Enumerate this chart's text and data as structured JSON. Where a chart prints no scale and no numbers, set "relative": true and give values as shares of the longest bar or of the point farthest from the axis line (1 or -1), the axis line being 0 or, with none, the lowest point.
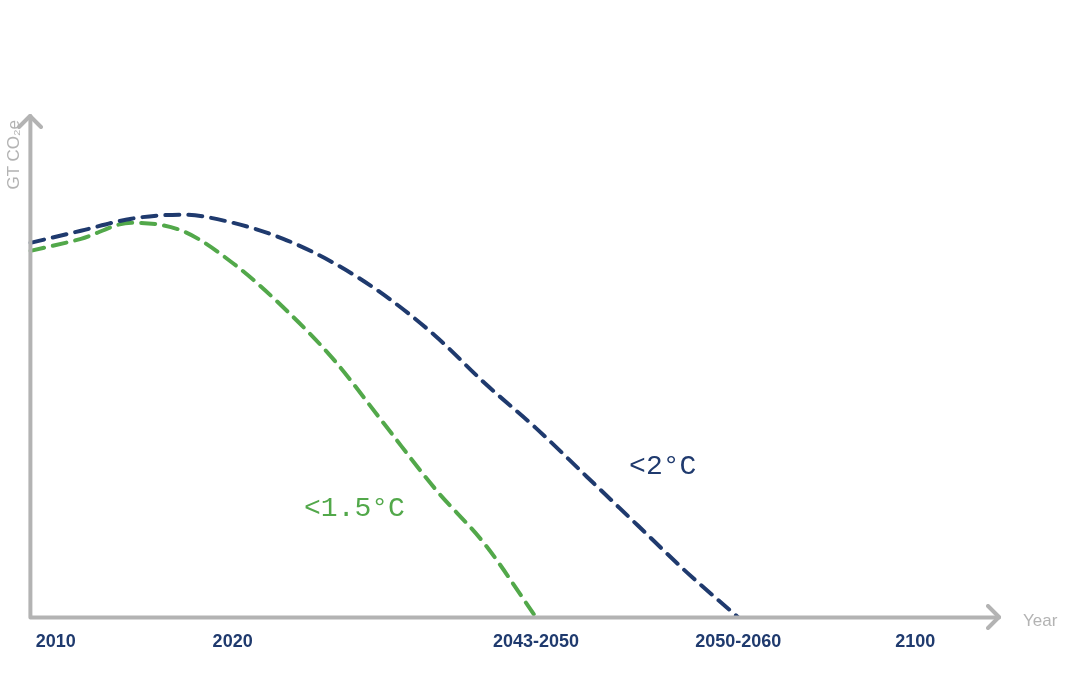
{
  "chart_data": {
    "type": "line",
    "relative": true,
    "ylabel": "GT CO₂e",
    "xlabel": "Year",
    "line_style": "dashed",
    "marker": "none",
    "grid": false,
    "legend": false,
    "categories": [
      null,
      "2010",
      null,
      null,
      null,
      null,
      null,
      null,
      "2020",
      null,
      null,
      null,
      null,
      null,
      null,
      null,
      null,
      null,
      null,
      null,
      "2043-2050",
      null,
      null,
      null,
      null,
      null,
      null,
      null,
      "2050-2060",
      null,
      null,
      null,
      null,
      null,
      null,
      "2100",
      null,
      null,
      null
    ],
    "series": [
      {
        "name": "<2°C",
        "color": "#1f3a6e",
        "values": [
          0.93,
          null,
          0.96,
          null,
          0.99,
          null,
          1,
          null,
          0.98,
          null,
          0.94,
          null,
          0.88,
          null,
          0.8,
          null,
          0.7,
          null,
          0.58,
          null,
          0.47,
          null,
          0.35,
          null,
          0.23,
          null,
          0.11,
          null,
          0,
          null,
          null,
          null,
          null,
          null,
          null,
          null,
          null,
          null,
          null
        ]
      },
      {
        "name": "<1.5°C",
        "color": "#52a84a",
        "values": [
          0.91,
          null,
          0.94,
          null,
          0.98,
          null,
          0.96,
          null,
          0.88,
          null,
          0.77,
          null,
          0.64,
          null,
          0.48,
          null,
          0.32,
          null,
          0.18,
          null,
          0,
          null,
          null,
          null,
          null,
          null,
          null,
          null,
          null,
          null,
          null,
          null,
          null,
          null,
          null,
          null,
          null,
          null,
          null
        ]
      }
    ]
  }
}
